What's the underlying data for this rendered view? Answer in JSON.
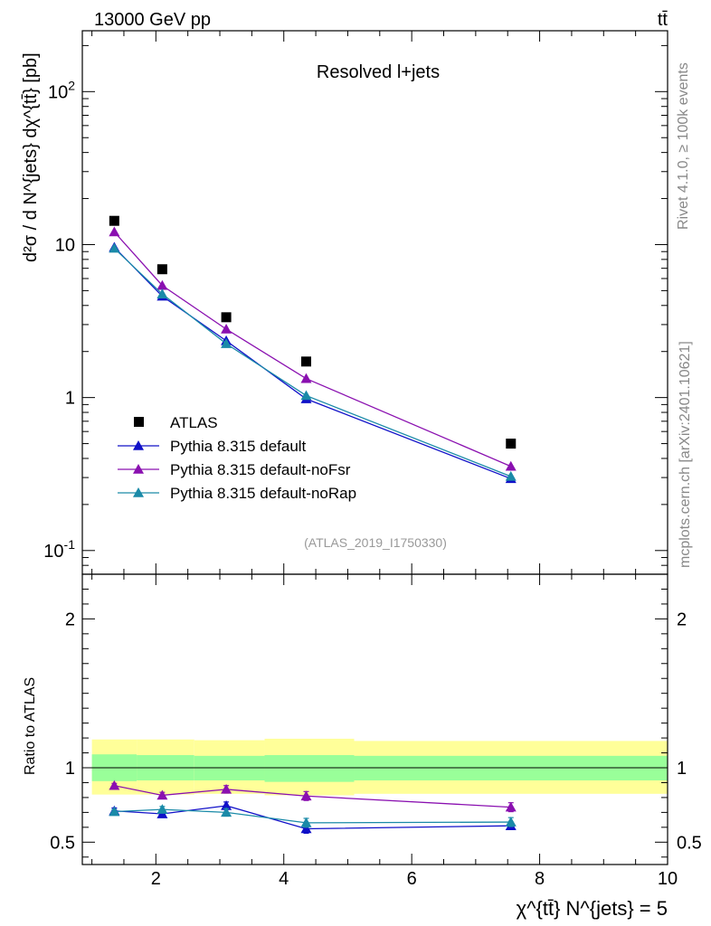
{
  "header": {
    "energy_label": "13000 GeV pp",
    "process_label": "tt̄"
  },
  "side_labels": {
    "rivet": "Rivet 4.1.0, ≥ 100k events",
    "mcplots": "mcplots.cern.ch [arXiv:2401.10621]"
  },
  "chart_data": {
    "type": "line",
    "title": "Resolved l+jets",
    "analysis_id": "(ATLAS_2019_I1750330)",
    "xlabel": "χ^{tt̄} N^{jets} = 5",
    "ylabel": "d²σ / d N^{jets} dχ^{tt̄} [pb]",
    "ratio_ylabel": "Ratio to ATLAS",
    "xlim": [
      0.85,
      10.0
    ],
    "ylim": [
      0.07,
      250
    ],
    "yscale": "log",
    "ratio_ylim": [
      0.35,
      2.3
    ],
    "x_ticks": [
      2,
      4,
      6,
      8,
      10
    ],
    "y_major_ticks": [
      "10^{-1}",
      "1",
      "10",
      "10^{2}"
    ],
    "ratio_ticks": [
      "0.5",
      "1",
      "2"
    ],
    "legend_position": "middle-left",
    "data": {
      "name": "ATLAS",
      "color": "#000000",
      "x": [
        1.35,
        2.1,
        3.1,
        4.35,
        7.55
      ],
      "y": [
        14.3,
        6.9,
        3.35,
        1.72,
        0.5
      ]
    },
    "series": [
      {
        "name": "Pythia 8.315 default",
        "color": "#1010c8",
        "x": [
          1.35,
          2.1,
          3.1,
          4.35,
          7.55
        ],
        "y": [
          9.6,
          4.6,
          2.35,
          0.98,
          0.295
        ],
        "ratio": [
          0.71,
          0.69,
          0.745,
          0.59,
          0.61
        ],
        "ratio_err": [
          0.02,
          0.02,
          0.025,
          0.03,
          0.025
        ]
      },
      {
        "name": "Pythia 8.315 default-noFsr",
        "color": "#8a10b0",
        "x": [
          1.35,
          2.1,
          3.1,
          4.35,
          7.55
        ],
        "y": [
          12.1,
          5.4,
          2.8,
          1.33,
          0.355
        ],
        "ratio": [
          0.88,
          0.815,
          0.855,
          0.81,
          0.735
        ],
        "ratio_err": [
          0.015,
          0.02,
          0.025,
          0.03,
          0.03
        ]
      },
      {
        "name": "Pythia 8.315 default-noRap",
        "color": "#1a8aa8",
        "x": [
          1.35,
          2.1,
          3.1,
          4.35,
          7.55
        ],
        "y": [
          9.45,
          4.75,
          2.25,
          1.03,
          0.305
        ],
        "ratio": [
          0.705,
          0.72,
          0.7,
          0.63,
          0.635
        ],
        "ratio_err": [
          0.015,
          0.02,
          0.025,
          0.03,
          0.03
        ]
      }
    ],
    "uncertainty_bands": {
      "inner_color": "#99ff99",
      "outer_color": "#ffff99",
      "bins": [
        {
          "x0": 1.0,
          "x1": 1.7,
          "inner": [
            0.91,
            1.09
          ],
          "outer": [
            0.82,
            1.19
          ]
        },
        {
          "x0": 1.7,
          "x1": 2.6,
          "inner": [
            0.915,
            1.085
          ],
          "outer": [
            0.82,
            1.19
          ]
        },
        {
          "x0": 2.6,
          "x1": 3.7,
          "inner": [
            0.915,
            1.08
          ],
          "outer": [
            0.825,
            1.185
          ]
        },
        {
          "x0": 3.7,
          "x1": 5.1,
          "inner": [
            0.905,
            1.085
          ],
          "outer": [
            0.815,
            1.195
          ]
        },
        {
          "x0": 5.1,
          "x1": 10.0,
          "inner": [
            0.915,
            1.08
          ],
          "outer": [
            0.825,
            1.18
          ]
        }
      ]
    }
  }
}
